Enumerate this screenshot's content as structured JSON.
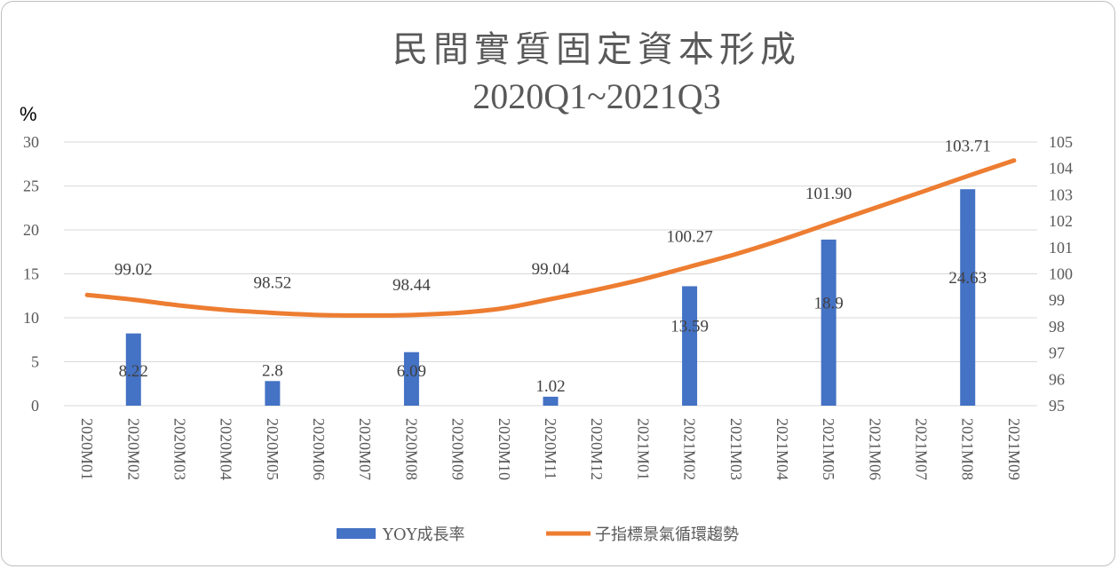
{
  "chart_data": {
    "type": "bar",
    "title": "民間實質固定資本形成",
    "subtitle": "2020Q1~2021Q3",
    "y_unit": "%",
    "categories": [
      "2020M01",
      "2020M02",
      "2020M03",
      "2020M04",
      "2020M05",
      "2020M06",
      "2020M07",
      "2020M08",
      "2020M09",
      "2020M10",
      "2020M11",
      "2020M12",
      "2021M01",
      "2021M02",
      "2021M03",
      "2021M04",
      "2021M05",
      "2021M06",
      "2021M07",
      "2021M08",
      "2021M09"
    ],
    "y_left": {
      "min": 0,
      "max": 30,
      "ticks": [
        0,
        5,
        10,
        15,
        20,
        25,
        30
      ]
    },
    "y_right": {
      "min": 95,
      "max": 105,
      "ticks": [
        95,
        96,
        97,
        98,
        99,
        100,
        101,
        102,
        103,
        104,
        105
      ]
    },
    "grid": true,
    "legend_position": "bottom",
    "series": [
      {
        "name": "YOY成長率",
        "type": "bar",
        "axis": "left",
        "color": "#4472c4",
        "values": [
          null,
          8.22,
          null,
          null,
          2.8,
          null,
          null,
          6.09,
          null,
          null,
          1.02,
          null,
          null,
          13.59,
          null,
          null,
          18.9,
          null,
          null,
          24.63,
          null
        ],
        "labels": [
          null,
          "8.22",
          null,
          null,
          "2.8",
          null,
          null,
          "6.09",
          null,
          null,
          "1.02",
          null,
          null,
          "13.59",
          null,
          null,
          "18.9",
          null,
          null,
          "24.63",
          null
        ]
      },
      {
        "name": "子指標景氣循環趨勢",
        "type": "line",
        "axis": "right",
        "color": "#ed7d31",
        "values": [
          99.2,
          99.02,
          98.8,
          98.63,
          98.52,
          98.44,
          98.42,
          98.44,
          98.52,
          98.7,
          99.04,
          99.4,
          99.8,
          100.27,
          100.75,
          101.3,
          101.9,
          102.5,
          103.1,
          103.71,
          104.3
        ],
        "labels": [
          null,
          "99.02",
          null,
          null,
          "98.52",
          null,
          null,
          "98.44",
          null,
          null,
          "99.04",
          null,
          null,
          "100.27",
          null,
          null,
          "101.90",
          null,
          null,
          "103.71",
          null
        ]
      }
    ]
  }
}
